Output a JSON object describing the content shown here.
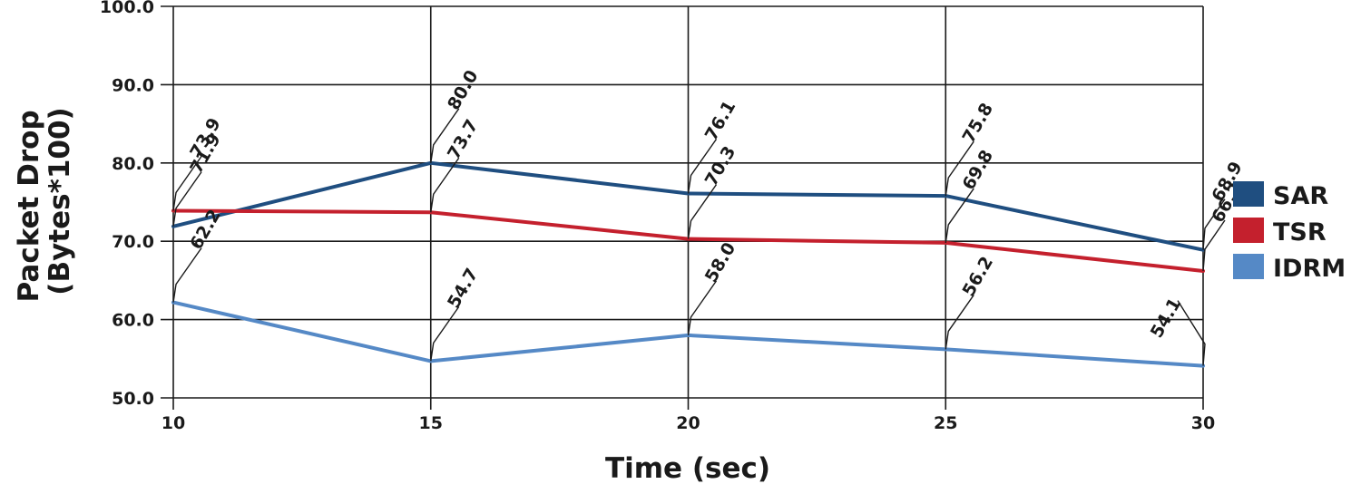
{
  "chart_data": {
    "type": "line",
    "xlabel": "Time (sec)",
    "ylabel": [
      "Packet Drop",
      "(Bytes*100)"
    ],
    "x": [
      10,
      15,
      20,
      25,
      30
    ],
    "x_tick_labels": [
      "10",
      "15",
      "20",
      "25",
      "30"
    ],
    "ylim": [
      50,
      100
    ],
    "y_ticks": [
      50,
      60,
      70,
      80,
      90,
      100
    ],
    "y_tick_labels": [
      "50.0",
      "60.0",
      "70.0",
      "80.0",
      "90.0",
      "100.0"
    ],
    "grid": true,
    "legend_position": "right",
    "series": [
      {
        "name": "SAR",
        "color": "#1f4e80",
        "values": [
          71.9,
          80.0,
          76.1,
          75.8,
          68.9
        ],
        "value_labels": [
          "71.9",
          "80.0",
          "76.1",
          "75.8",
          "68.9"
        ]
      },
      {
        "name": "TSR",
        "color": "#c4202d",
        "values": [
          73.9,
          73.7,
          70.3,
          69.8,
          66.2
        ],
        "value_labels": [
          "73.9",
          "73.7",
          "70.3",
          "69.8",
          "66.2"
        ]
      },
      {
        "name": "IDRM",
        "color": "#5589c6",
        "values": [
          62.2,
          54.7,
          58.0,
          56.2,
          54.1
        ],
        "value_labels": [
          "62.2",
          "54.7",
          "58.0",
          "56.2",
          "54.1"
        ]
      }
    ]
  }
}
